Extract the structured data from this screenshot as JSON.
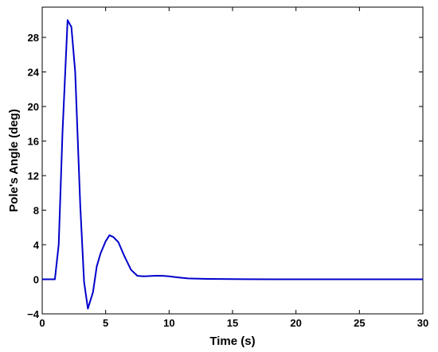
{
  "chart_data": {
    "type": "line",
    "title": "",
    "xlabel": "Time (s)",
    "ylabel": "Pole's Angle (deg)",
    "xlim": [
      0,
      30
    ],
    "ylim": [
      -4,
      31.5
    ],
    "xticks": [
      0,
      5,
      10,
      15,
      20,
      25,
      30
    ],
    "yticks": [
      -4,
      0,
      4,
      8,
      12,
      16,
      20,
      24,
      28
    ],
    "grid": false,
    "line_color": "#0000cc",
    "series": [
      {
        "x": [
          0,
          1.0,
          1.3,
          1.6,
          2.0,
          2.3,
          2.6,
          3.0,
          3.3,
          3.6,
          4.0,
          4.3,
          4.6,
          5.0,
          5.3,
          5.6,
          6.0,
          6.5,
          7.0,
          7.5,
          8.0,
          8.5,
          9.0,
          9.5,
          10.0,
          10.5,
          11.0,
          11.5,
          12.0,
          13.0,
          14.0,
          15.0,
          16.0,
          18.0,
          20.0,
          25.0,
          30.0
        ],
        "y": [
          0,
          0,
          4.0,
          17.0,
          30.0,
          29.2,
          24.0,
          8.5,
          -0.3,
          -3.4,
          -1.5,
          1.5,
          3.0,
          4.4,
          5.1,
          4.9,
          4.3,
          2.6,
          1.1,
          0.4,
          0.35,
          0.38,
          0.42,
          0.4,
          0.35,
          0.25,
          0.17,
          0.1,
          0.08,
          0.05,
          0.03,
          0.02,
          0.01,
          0.0,
          0.0,
          0.0,
          0.0
        ]
      }
    ]
  }
}
